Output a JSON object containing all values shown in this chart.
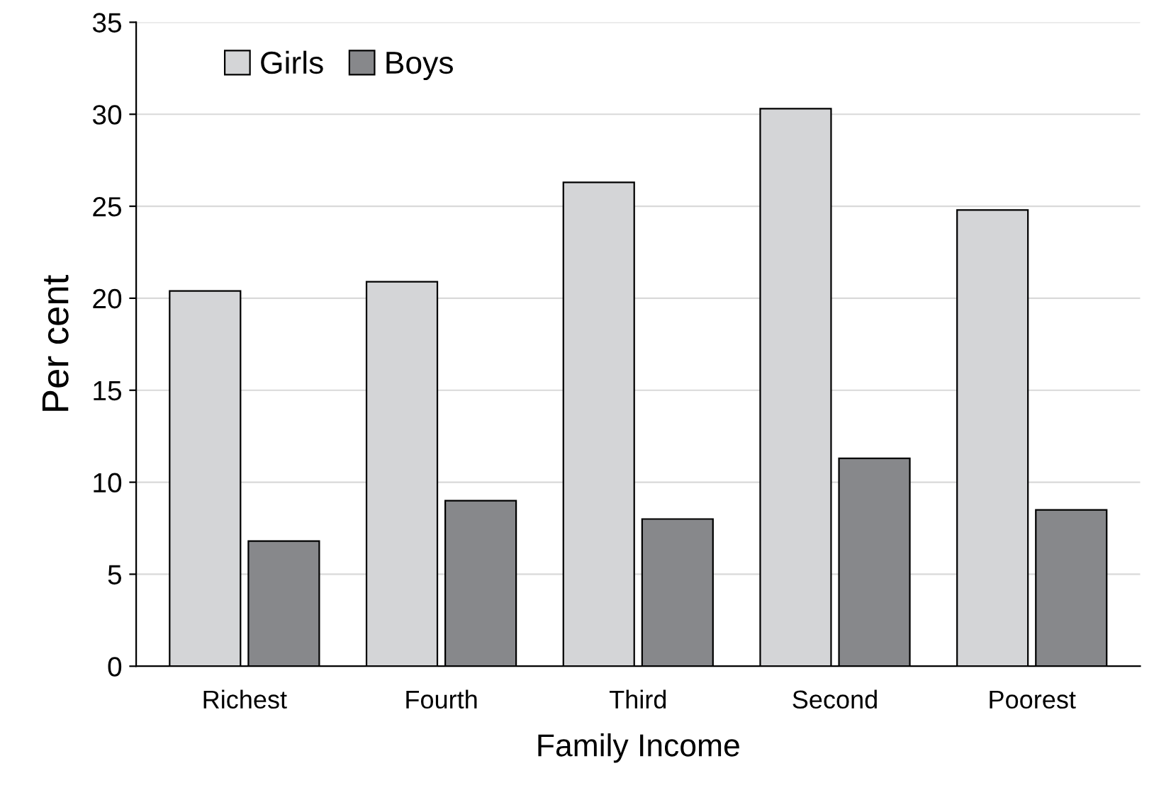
{
  "chart_data": {
    "type": "bar",
    "xlabel": "Family Income",
    "ylabel": "Per cent",
    "categories": [
      "Richest",
      "Fourth",
      "Third",
      "Second",
      "Poorest"
    ],
    "series": [
      {
        "name": "Girls",
        "color": "#d4d5d7",
        "values": [
          20.4,
          20.9,
          26.3,
          30.3,
          24.8
        ]
      },
      {
        "name": "Boys",
        "color": "#87888b",
        "values": [
          6.8,
          9.0,
          8.0,
          11.3,
          8.5
        ]
      }
    ],
    "ylim": [
      0,
      35
    ],
    "yticks": [
      0,
      5,
      10,
      15,
      20,
      25,
      30,
      35
    ],
    "grid": "y",
    "legend": "top left"
  }
}
